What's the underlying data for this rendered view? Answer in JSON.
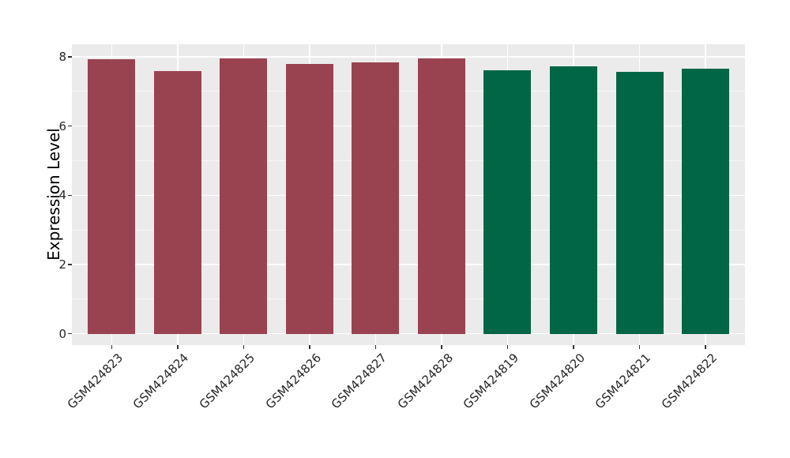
{
  "chart_data": {
    "type": "bar",
    "title": "",
    "xlabel": "",
    "ylabel": "Expression Level",
    "categories": [
      "GSM424823",
      "GSM424824",
      "GSM424825",
      "GSM424826",
      "GSM424827",
      "GSM424828",
      "GSM424819",
      "GSM424820",
      "GSM424821",
      "GSM424822"
    ],
    "values": [
      7.92,
      7.6,
      7.95,
      7.8,
      7.84,
      7.96,
      7.62,
      7.73,
      7.57,
      7.66
    ],
    "bar_colors": [
      "#9a4350",
      "#9a4350",
      "#9a4350",
      "#9a4350",
      "#9a4350",
      "#9a4350",
      "#006645",
      "#006645",
      "#006645",
      "#006645"
    ],
    "ylim": [
      -0.4,
      8.36
    ],
    "yticks": [
      0,
      2,
      4,
      6,
      8
    ],
    "ytick_labels": [
      "0",
      "2",
      "4",
      "6",
      "8"
    ],
    "yticks_minor": [
      1,
      3,
      5,
      7
    ],
    "x_tick_rotation_deg": 45,
    "grid": "major-and-minor-horizontal-plus-major-vertical",
    "legend": "none",
    "colors": {
      "group_left": "#9a4350",
      "group_right": "#006645",
      "panel_background": "#ebebeb",
      "gridline": "#ffffff",
      "axis_text": "#262626",
      "axis_title": "#000000",
      "tick_mark": "#333333"
    }
  }
}
